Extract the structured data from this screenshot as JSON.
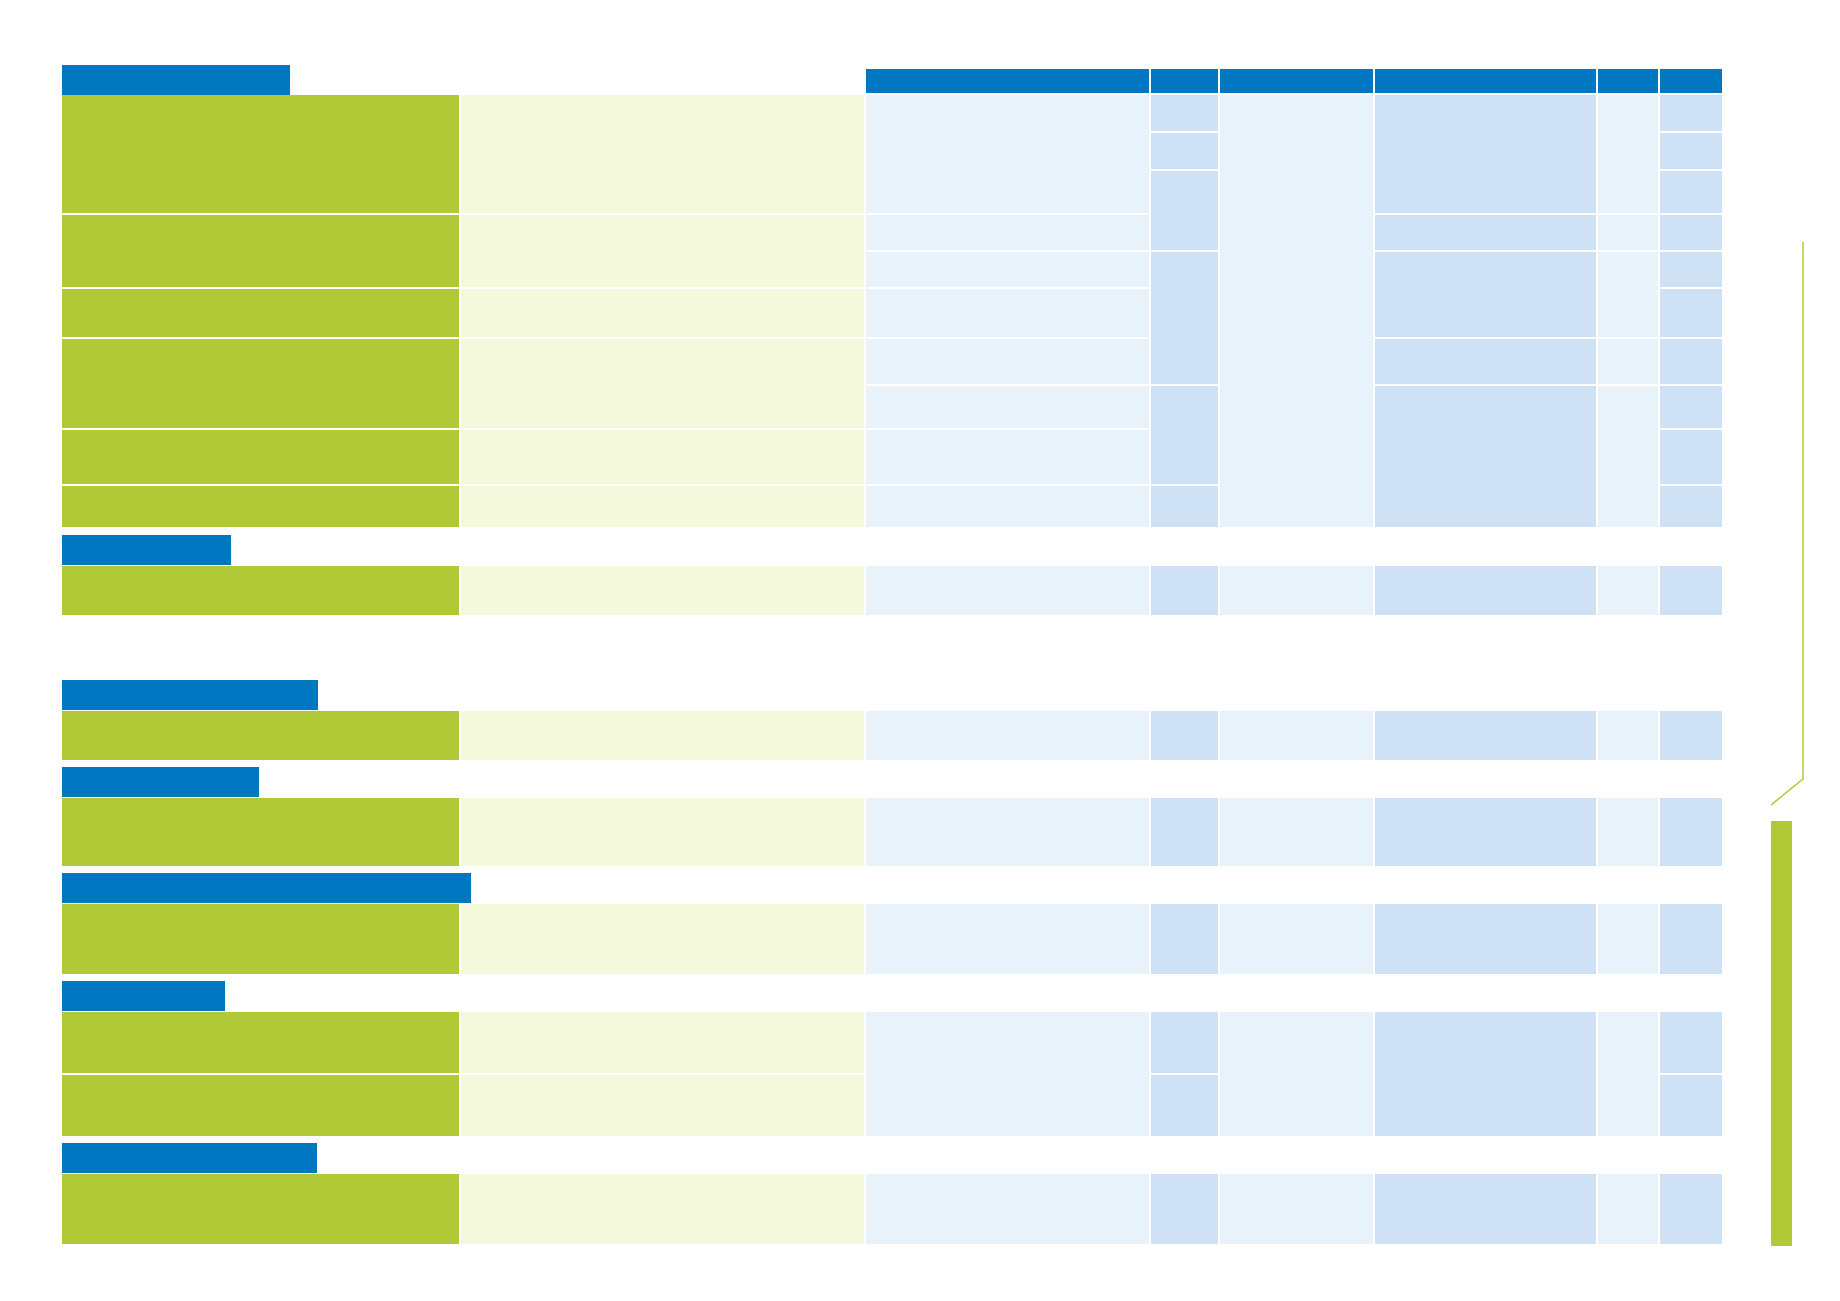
{
  "colors": {
    "header_blue": "#0077c0",
    "category_green": "#b1c936",
    "description_pale_green": "#f3f9da",
    "cell_light_blue": "#e8f2fb",
    "cell_mid_blue": "#cfe1f4",
    "side_bar_green": "#b1c936"
  },
  "column_headers": [
    "",
    "",
    "",
    "",
    "",
    ""
  ],
  "sections": [
    {
      "title": "",
      "rows": 8
    },
    {
      "title": "",
      "rows": 1
    },
    {
      "title": "",
      "rows": 1
    },
    {
      "title": "",
      "rows": 1
    },
    {
      "title": "",
      "rows": 1
    },
    {
      "title": "",
      "rows": 2
    },
    {
      "title": "",
      "rows": 1
    }
  ]
}
